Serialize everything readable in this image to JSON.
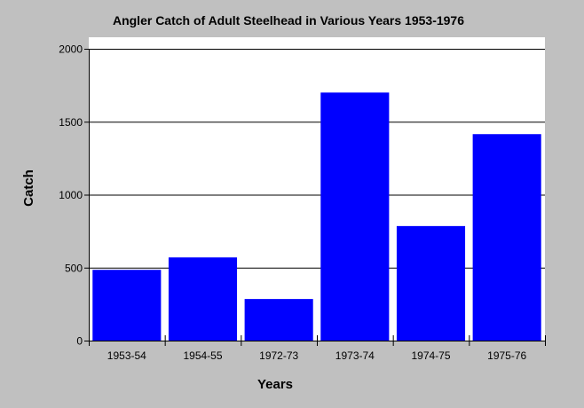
{
  "chart_data": {
    "type": "bar",
    "title": "Angler Catch of Adult Steelhead in Various Years 1953-1976",
    "xlabel": "Years",
    "ylabel": "Catch",
    "categories": [
      "1953-54",
      "1954-55",
      "1972-73",
      "1973-74",
      "1974-75",
      "1975-76"
    ],
    "values": [
      485,
      570,
      285,
      1700,
      785,
      1415
    ],
    "ylim": [
      0,
      2000
    ],
    "yticks": [
      0,
      500,
      1000,
      1500,
      2000
    ],
    "grid": true,
    "legend": "none",
    "colors": {
      "bar": "#0000ff",
      "background": "#c0c0c0",
      "plot_background": "#ffffff",
      "axis": "#000000"
    }
  }
}
